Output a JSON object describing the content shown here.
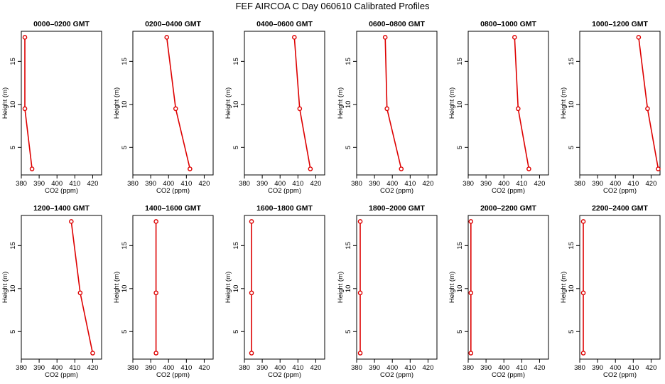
{
  "title": "FEF AIRCOA C  Day 060610  Calibrated Profiles",
  "colors": {
    "series": "#dd0000",
    "axis": "#000000"
  },
  "chart_data": [
    {
      "type": "line",
      "title": "0000–0200 GMT",
      "xlabel": "CO2 (ppm)",
      "ylabel": "Height (m)",
      "xlim": [
        380,
        425
      ],
      "ylim": [
        1.8,
        18.5
      ],
      "xticks": [
        380,
        390,
        400,
        410,
        420
      ],
      "yticks": [
        5,
        10,
        15
      ],
      "x": [
        382,
        382,
        386
      ],
      "y": [
        17.8,
        9.5,
        2.5
      ]
    },
    {
      "type": "line",
      "title": "0200–0400 GMT",
      "xlabel": "CO2 (ppm)",
      "ylabel": "Height (m)",
      "xlim": [
        380,
        425
      ],
      "ylim": [
        1.8,
        18.5
      ],
      "xticks": [
        380,
        390,
        400,
        410,
        420
      ],
      "yticks": [
        5,
        10,
        15
      ],
      "x": [
        399,
        404,
        412
      ],
      "y": [
        17.8,
        9.5,
        2.5
      ]
    },
    {
      "type": "line",
      "title": "0400–0600 GMT",
      "xlabel": "CO2 (ppm)",
      "ylabel": "Height (m)",
      "xlim": [
        380,
        425
      ],
      "ylim": [
        1.8,
        18.5
      ],
      "xticks": [
        380,
        390,
        400,
        410,
        420
      ],
      "yticks": [
        5,
        10,
        15
      ],
      "x": [
        408,
        411,
        417
      ],
      "y": [
        17.8,
        9.5,
        2.5
      ]
    },
    {
      "type": "line",
      "title": "0600–0800 GMT",
      "xlabel": "CO2 (ppm)",
      "ylabel": "Height (m)",
      "xlim": [
        380,
        425
      ],
      "ylim": [
        1.8,
        18.5
      ],
      "xticks": [
        380,
        390,
        400,
        410,
        420
      ],
      "yticks": [
        5,
        10,
        15
      ],
      "x": [
        396,
        397,
        405
      ],
      "y": [
        17.8,
        9.5,
        2.5
      ]
    },
    {
      "type": "line",
      "title": "0800–1000 GMT",
      "xlabel": "CO2 (ppm)",
      "ylabel": "Height (m)",
      "xlim": [
        380,
        425
      ],
      "ylim": [
        1.8,
        18.5
      ],
      "xticks": [
        380,
        390,
        400,
        410,
        420
      ],
      "yticks": [
        5,
        10,
        15
      ],
      "x": [
        406,
        408,
        414
      ],
      "y": [
        17.8,
        9.5,
        2.5
      ]
    },
    {
      "type": "line",
      "title": "1000–1200 GMT",
      "xlabel": "CO2 (ppm)",
      "ylabel": "Height (m)",
      "xlim": [
        380,
        425
      ],
      "ylim": [
        1.8,
        18.5
      ],
      "xticks": [
        380,
        390,
        400,
        410,
        420
      ],
      "yticks": [
        5,
        10,
        15
      ],
      "x": [
        413,
        418,
        424
      ],
      "y": [
        17.8,
        9.5,
        2.5
      ]
    },
    {
      "type": "line",
      "title": "1200–1400 GMT",
      "xlabel": "CO2 (ppm)",
      "ylabel": "Height (m)",
      "xlim": [
        380,
        425
      ],
      "ylim": [
        1.8,
        18.5
      ],
      "xticks": [
        380,
        390,
        400,
        410,
        420
      ],
      "yticks": [
        5,
        10,
        15
      ],
      "x": [
        408,
        413,
        420
      ],
      "y": [
        17.8,
        9.5,
        2.5
      ]
    },
    {
      "type": "line",
      "title": "1400–1600 GMT",
      "xlabel": "CO2 (ppm)",
      "ylabel": "Height (m)",
      "xlim": [
        380,
        425
      ],
      "ylim": [
        1.8,
        18.5
      ],
      "xticks": [
        380,
        390,
        400,
        410,
        420
      ],
      "yticks": [
        5,
        10,
        15
      ],
      "x": [
        393,
        393,
        393
      ],
      "y": [
        17.8,
        9.5,
        2.5
      ]
    },
    {
      "type": "line",
      "title": "1600–1800 GMT",
      "xlabel": "CO2 (ppm)",
      "ylabel": "Height (m)",
      "xlim": [
        380,
        425
      ],
      "ylim": [
        1.8,
        18.5
      ],
      "xticks": [
        380,
        390,
        400,
        410,
        420
      ],
      "yticks": [
        5,
        10,
        15
      ],
      "x": [
        384,
        384,
        384
      ],
      "y": [
        17.8,
        9.5,
        2.5
      ]
    },
    {
      "type": "line",
      "title": "1800–2000 GMT",
      "xlabel": "CO2 (ppm)",
      "ylabel": "Height (m)",
      "xlim": [
        380,
        425
      ],
      "ylim": [
        1.8,
        18.5
      ],
      "xticks": [
        380,
        390,
        400,
        410,
        420
      ],
      "yticks": [
        5,
        10,
        15
      ],
      "x": [
        382,
        382,
        382
      ],
      "y": [
        17.8,
        9.5,
        2.5
      ]
    },
    {
      "type": "line",
      "title": "2000–2200 GMT",
      "xlabel": "CO2 (ppm)",
      "ylabel": "Height (m)",
      "xlim": [
        380,
        425
      ],
      "ylim": [
        1.8,
        18.5
      ],
      "xticks": [
        380,
        390,
        400,
        410,
        420
      ],
      "yticks": [
        5,
        10,
        15
      ],
      "x": [
        381.5,
        381.5,
        381.5
      ],
      "y": [
        17.8,
        9.5,
        2.5
      ]
    },
    {
      "type": "line",
      "title": "2200–2400 GMT",
      "xlabel": "CO2 (ppm)",
      "ylabel": "Height (m)",
      "xlim": [
        380,
        425
      ],
      "ylim": [
        1.8,
        18.5
      ],
      "xticks": [
        380,
        390,
        400,
        410,
        420
      ],
      "yticks": [
        5,
        10,
        15
      ],
      "x": [
        382,
        382,
        382
      ],
      "y": [
        17.8,
        9.5,
        2.5
      ]
    }
  ]
}
